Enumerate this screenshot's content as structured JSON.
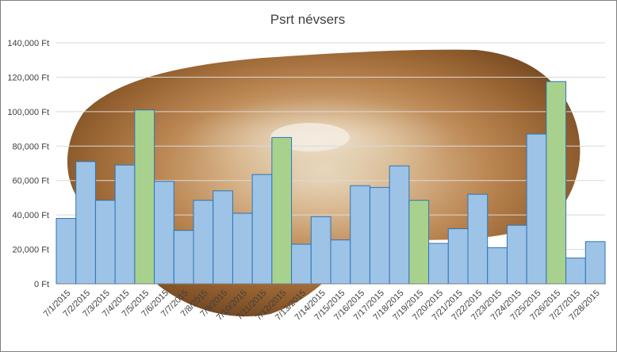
{
  "chart_data": {
    "type": "bar",
    "title": "Psrt névsers",
    "xlabel": "",
    "ylabel": "",
    "ylim": [
      0,
      140000
    ],
    "yticks": [
      0,
      20000,
      40000,
      60000,
      80000,
      100000,
      120000,
      140000
    ],
    "ytick_labels": [
      "0 Ft",
      "20,000 Ft",
      "40,000 Ft",
      "60,000 Ft",
      "80,000 Ft",
      "100,000 Ft",
      "120,000 Ft",
      "140,000 Ft"
    ],
    "grid": true,
    "legend": "none",
    "categories": [
      "7/1/2015",
      "7/2/2015",
      "7/3/2015",
      "7/4/2015",
      "7/5/2015",
      "7/6/2015",
      "7/7/2015",
      "7/8/2015",
      "7/9/2015",
      "7/10/2015",
      "7/11/2015",
      "7/12/2015",
      "7/13/2015",
      "7/14/2015",
      "7/15/2015",
      "7/16/2015",
      "7/17/2015",
      "7/18/2015",
      "7/19/2015",
      "7/20/2015",
      "7/21/2015",
      "7/22/2015",
      "7/23/2015",
      "7/24/2015",
      "7/25/2015",
      "7/26/2015",
      "7/27/2015",
      "7/28/2015"
    ],
    "values": [
      38000,
      71000,
      48500,
      69000,
      101000,
      59500,
      31000,
      48500,
      54000,
      41000,
      63500,
      85000,
      23000,
      39000,
      25500,
      57000,
      56000,
      68500,
      48500,
      23500,
      32000,
      52000,
      21000,
      34000,
      87000,
      117500,
      15000,
      24500
    ],
    "highlight": [
      false,
      false,
      false,
      false,
      true,
      false,
      false,
      false,
      false,
      false,
      false,
      true,
      false,
      false,
      false,
      false,
      false,
      false,
      true,
      false,
      false,
      false,
      false,
      false,
      false,
      true,
      false,
      false
    ],
    "colors": {
      "bar_fill": "#9dc3e6",
      "bar_stroke": "#2e75b6",
      "highlight_fill": "#a9d18e",
      "highlight_stroke": "#2e75b6",
      "grid": "#d9d9d9",
      "text": "#404040"
    },
    "background_image": "langos-flatbread-photo"
  }
}
